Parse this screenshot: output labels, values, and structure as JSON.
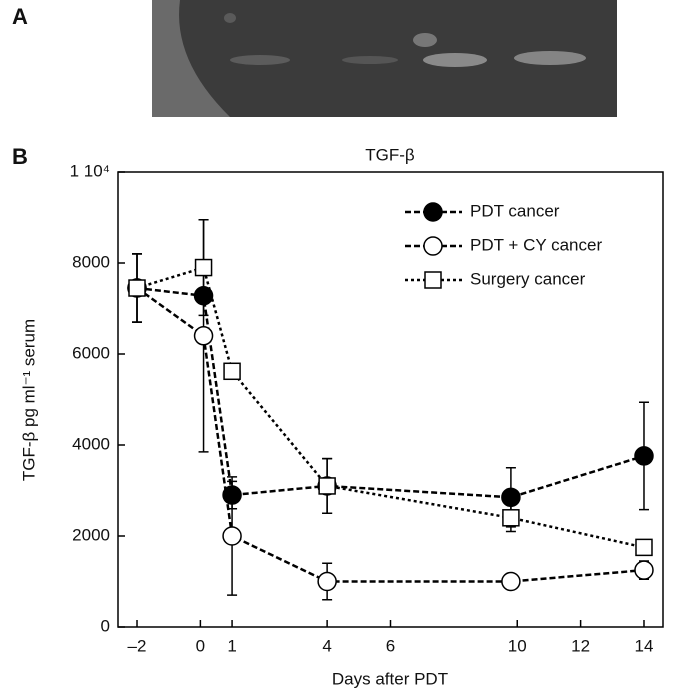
{
  "panel_labels": {
    "a": "A",
    "b": "B"
  },
  "chart_data": {
    "type": "line",
    "title": "TGF-β",
    "x_label": "Days after PDT",
    "y_label": "TGF-β pg ml⁻¹ serum",
    "x": [
      -2,
      0.1,
      1,
      4,
      9.8,
      14
    ],
    "xlim": [
      -2.6,
      14.6
    ],
    "xticks": [
      {
        "value": -2,
        "label": "–2"
      },
      0,
      1,
      4,
      6,
      10,
      12,
      14
    ],
    "ylim": [
      0,
      10000
    ],
    "yticks": [
      0,
      2000,
      4000,
      6000,
      8000,
      {
        "value": 10000,
        "label": "1 10⁴"
      }
    ],
    "legend": "upper right",
    "series": [
      {
        "name": "PDT cancer",
        "color": "#000000",
        "line_style": "dashed",
        "marker": "filled-circle",
        "values": [
          7450,
          7280,
          2900,
          3100,
          2850,
          3760
        ],
        "errors": [
          750,
          0,
          300,
          600,
          650,
          1180
        ]
      },
      {
        "name": "PDT + CY cancer",
        "color": "#000000",
        "line_style": "dashed",
        "marker": "open-circle",
        "values": [
          7450,
          6400,
          2000,
          1000,
          1000,
          1250
        ],
        "errors": [
          750,
          2550,
          1300,
          400,
          100,
          200
        ]
      },
      {
        "name": "Surgery cancer",
        "color": "#000000",
        "line_style": "dotted",
        "marker": "open-square",
        "values": [
          7450,
          7900,
          5620,
          3100,
          2400,
          1750
        ],
        "errors": [
          750,
          1050,
          100,
          600,
          300,
          100
        ]
      }
    ]
  }
}
